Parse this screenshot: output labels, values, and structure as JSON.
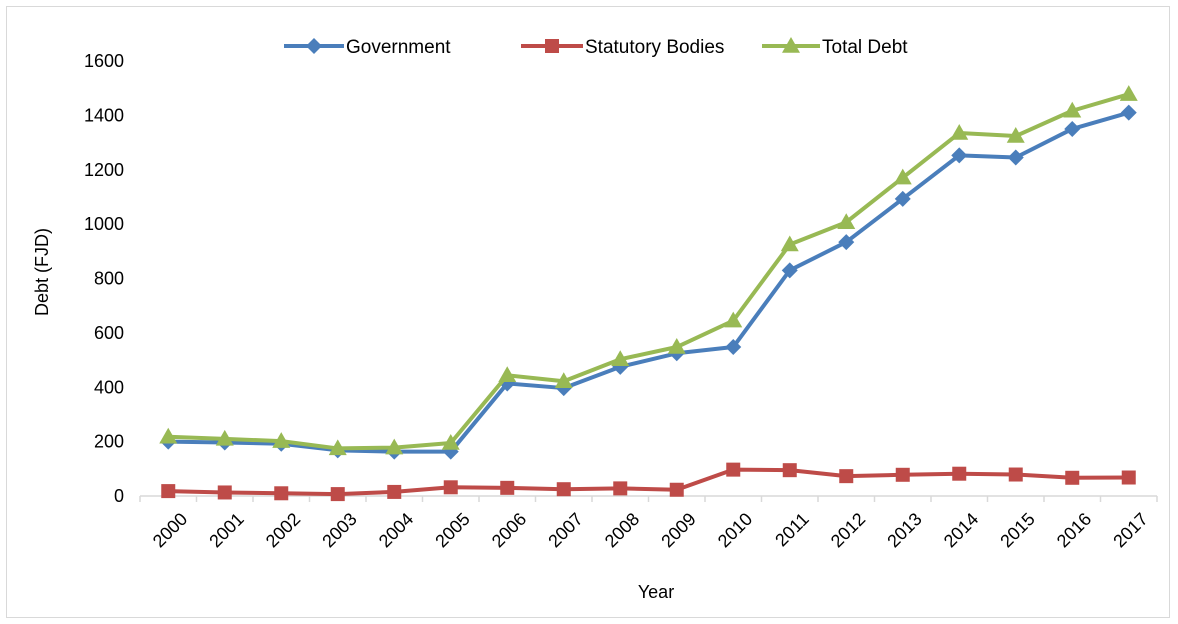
{
  "chart_data": {
    "type": "line",
    "title": "",
    "xlabel": "Year",
    "ylabel": "Debt (FJD)",
    "ylim": [
      0,
      1600
    ],
    "yticks": [
      0,
      200,
      400,
      600,
      800,
      1000,
      1200,
      1400,
      1600
    ],
    "categories": [
      "2000",
      "2001",
      "2002",
      "2003",
      "2004",
      "2005",
      "2006",
      "2007",
      "2008",
      "2009",
      "2010",
      "2011",
      "2012",
      "2013",
      "2014",
      "2015",
      "2016",
      "2017"
    ],
    "grid": false,
    "legend_position": "top-center",
    "series": [
      {
        "name": "Government",
        "color": "#4a7ebb",
        "marker": "diamond",
        "values": [
          200,
          197,
          192,
          168,
          163,
          163,
          414,
          397,
          475,
          525,
          548,
          830,
          934,
          1093,
          1253,
          1245,
          1350,
          1410
        ]
      },
      {
        "name": "Statutory Bodies",
        "color": "#be4b48",
        "marker": "square",
        "values": [
          18,
          13,
          10,
          7,
          15,
          32,
          30,
          25,
          28,
          23,
          97,
          95,
          73,
          78,
          82,
          79,
          67,
          68
        ]
      },
      {
        "name": "Total Debt",
        "color": "#98b954",
        "marker": "triangle",
        "values": [
          218,
          210,
          202,
          175,
          178,
          195,
          444,
          422,
          503,
          548,
          645,
          925,
          1007,
          1171,
          1335,
          1324,
          1417,
          1478
        ]
      }
    ]
  }
}
